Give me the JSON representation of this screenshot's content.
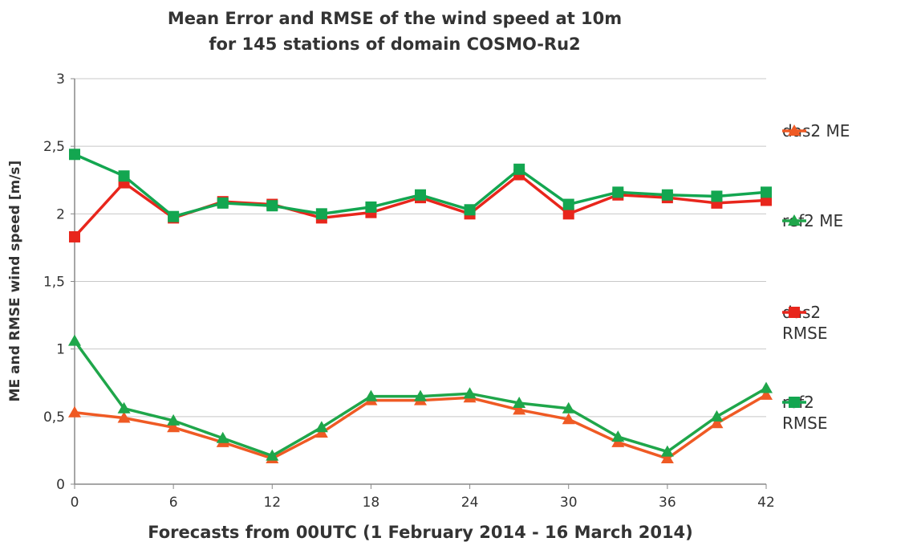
{
  "chart_data": {
    "type": "line",
    "title": [
      "Mean Error and RMSE of the wind speed at 10m",
      "for 145 stations of domain COSMO-Ru2"
    ],
    "xlabel": "Forecasts from 00UTC (1 February 2014 - 16 March 2014)",
    "ylabel": "ME and RMSE  wind speed  [m/s]",
    "x": [
      0,
      3,
      6,
      9,
      12,
      15,
      18,
      21,
      24,
      27,
      30,
      33,
      36,
      39,
      42
    ],
    "xlim": [
      0,
      42
    ],
    "xticks": [
      0,
      6,
      12,
      18,
      24,
      30,
      36,
      42
    ],
    "ylim": [
      0,
      3
    ],
    "yticks": [
      0,
      {
        "value": 0.5,
        "label": "0,5"
      },
      1,
      {
        "value": 1.5,
        "label": "1,5"
      },
      2,
      {
        "value": 2.5,
        "label": "2,5"
      },
      3
    ],
    "grid": true,
    "legend": "right",
    "series": [
      {
        "name": "das2 ME",
        "color": "#ef5a24",
        "marker": "triangle",
        "values": [
          0.53,
          0.49,
          0.42,
          0.31,
          0.19,
          0.38,
          0.62,
          0.62,
          0.64,
          0.55,
          0.48,
          0.31,
          0.19,
          0.45,
          0.66
        ]
      },
      {
        "name": "ref2 ME",
        "color": "#1fa64a",
        "marker": "triangle",
        "values": [
          1.06,
          0.56,
          0.47,
          0.34,
          0.21,
          0.42,
          0.65,
          0.65,
          0.67,
          0.6,
          0.56,
          0.35,
          0.24,
          0.5,
          0.71
        ]
      },
      {
        "name": "das2 RMSE",
        "color": "#e8261c",
        "marker": "square",
        "values": [
          1.83,
          2.23,
          1.97,
          2.09,
          2.07,
          1.97,
          2.01,
          2.12,
          2.0,
          2.29,
          2.0,
          2.14,
          2.12,
          2.08,
          2.1
        ]
      },
      {
        "name": "ref2 RMSE",
        "color": "#13a650",
        "marker": "square",
        "values": [
          2.44,
          2.28,
          1.98,
          2.08,
          2.06,
          2.0,
          2.05,
          2.14,
          2.03,
          2.33,
          2.07,
          2.16,
          2.14,
          2.13,
          2.16
        ]
      }
    ]
  }
}
